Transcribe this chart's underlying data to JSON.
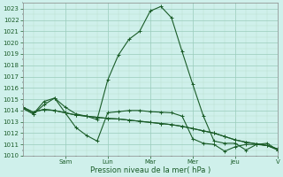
{
  "xlabel": "Pression niveau de la mer( hPa )",
  "bg_color": "#cff0eb",
  "grid_major_color": "#99ccbb",
  "grid_minor_color": "#bbddcc",
  "line_color": "#1a5c28",
  "ylim": [
    1010,
    1023.5
  ],
  "yticks": [
    1010,
    1011,
    1012,
    1013,
    1014,
    1015,
    1016,
    1017,
    1018,
    1019,
    1020,
    1021,
    1022,
    1023
  ],
  "day_labels": [
    "Sam",
    "Lun",
    "Mar",
    "Mer",
    "Jeu",
    "V"
  ],
  "series1": [
    1014.2,
    1013.7,
    1014.8,
    1015.1,
    1014.3,
    1013.7,
    1013.5,
    1013.2,
    1016.7,
    1018.9,
    1020.3,
    1021.0,
    1022.8,
    1023.2,
    1022.2,
    1019.2,
    1016.3,
    1013.5,
    1011.3,
    1011.1,
    1011.1,
    1010.5,
    1011.0,
    1011.1,
    1010.5
  ],
  "series2": [
    1014.3,
    1013.85,
    1014.1,
    1014.0,
    1013.8,
    1013.6,
    1013.5,
    1013.4,
    1013.3,
    1013.25,
    1013.15,
    1013.05,
    1012.95,
    1012.85,
    1012.75,
    1012.6,
    1012.4,
    1012.2,
    1012.0,
    1011.7,
    1011.4,
    1011.2,
    1011.05,
    1010.9,
    1010.6
  ],
  "series3": [
    1014.3,
    1013.85,
    1014.1,
    1014.0,
    1013.8,
    1013.6,
    1013.5,
    1013.4,
    1013.3,
    1013.25,
    1013.15,
    1013.05,
    1012.95,
    1012.85,
    1012.75,
    1012.6,
    1012.4,
    1012.2,
    1012.0,
    1011.7,
    1011.4,
    1011.2,
    1011.05,
    1010.9,
    1010.6
  ],
  "series4": [
    1014.2,
    1013.7,
    1014.5,
    1015.1,
    1013.8,
    1012.5,
    1011.8,
    1011.3,
    1013.8,
    1013.9,
    1014.0,
    1014.0,
    1013.9,
    1013.85,
    1013.8,
    1013.5,
    1011.5,
    1011.1,
    1011.0,
    1010.4,
    1010.8,
    1011.0,
    1011.0,
    1010.9,
    1010.5
  ]
}
